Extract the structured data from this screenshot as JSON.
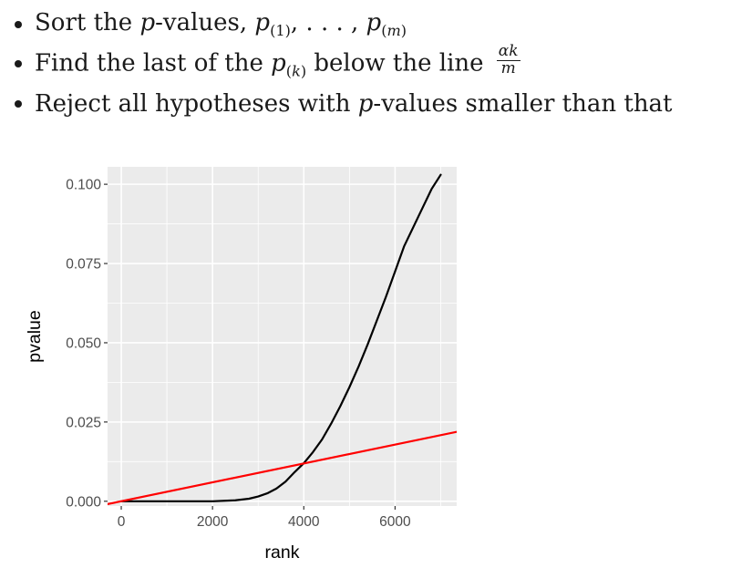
{
  "bullets": [
    {
      "pre": "Sort the ",
      "var": "p",
      "mid": "-values, ",
      "math": "p",
      "sub1": "(1)",
      "ellipsis": ", . . . , ",
      "math2": "p",
      "sub2_open": "(",
      "sub2_var": "m",
      "sub2_close": ")"
    },
    {
      "pre": "Find the last of the ",
      "math": "p",
      "sub_open": "(",
      "sub_var": "k",
      "sub_close": ")",
      "post": " below the line ",
      "frac_num": "αk",
      "frac_den": "m"
    },
    {
      "pre": "Reject all hypotheses with ",
      "var": "p",
      "post": "-values smaller than that"
    }
  ],
  "chart_data": {
    "type": "line",
    "xlabel": "rank",
    "ylabel": "pvalue",
    "xlim": [
      -300,
      7350
    ],
    "ylim": [
      -0.0015,
      0.1055
    ],
    "x_ticks": [
      0,
      2000,
      4000,
      6000
    ],
    "x_tick_labels": [
      "0",
      "2000",
      "4000",
      "6000"
    ],
    "y_ticks": [
      0.0,
      0.025,
      0.05,
      0.075,
      0.1
    ],
    "y_tick_labels": [
      "0.000",
      "0.025",
      "0.050",
      "0.075",
      "0.100"
    ],
    "panel_background": "#ebebeb",
    "grid_major": "#ffffff",
    "grid": true,
    "series": [
      {
        "color": "#000000",
        "x": [
          0,
          500,
          1000,
          1500,
          2000,
          2500,
          2800,
          3000,
          3200,
          3400,
          3600,
          3800,
          4000,
          4200,
          4400,
          4600,
          4800,
          5000,
          5200,
          5400,
          5600,
          5800,
          6000,
          6200,
          6400,
          6600,
          6800,
          7000
        ],
        "y": [
          0.0,
          0.0,
          0.0,
          0.0,
          0.0,
          0.0003,
          0.0008,
          0.0015,
          0.0025,
          0.004,
          0.0062,
          0.0092,
          0.012,
          0.0155,
          0.0195,
          0.0245,
          0.03,
          0.036,
          0.0425,
          0.0495,
          0.057,
          0.0645,
          0.0725,
          0.0805,
          0.0865,
          0.0925,
          0.0985,
          0.103
        ]
      },
      {
        "color": "#ff0000",
        "x": [
          -300,
          7350
        ],
        "y": [
          -0.0009,
          0.0219
        ]
      }
    ]
  }
}
